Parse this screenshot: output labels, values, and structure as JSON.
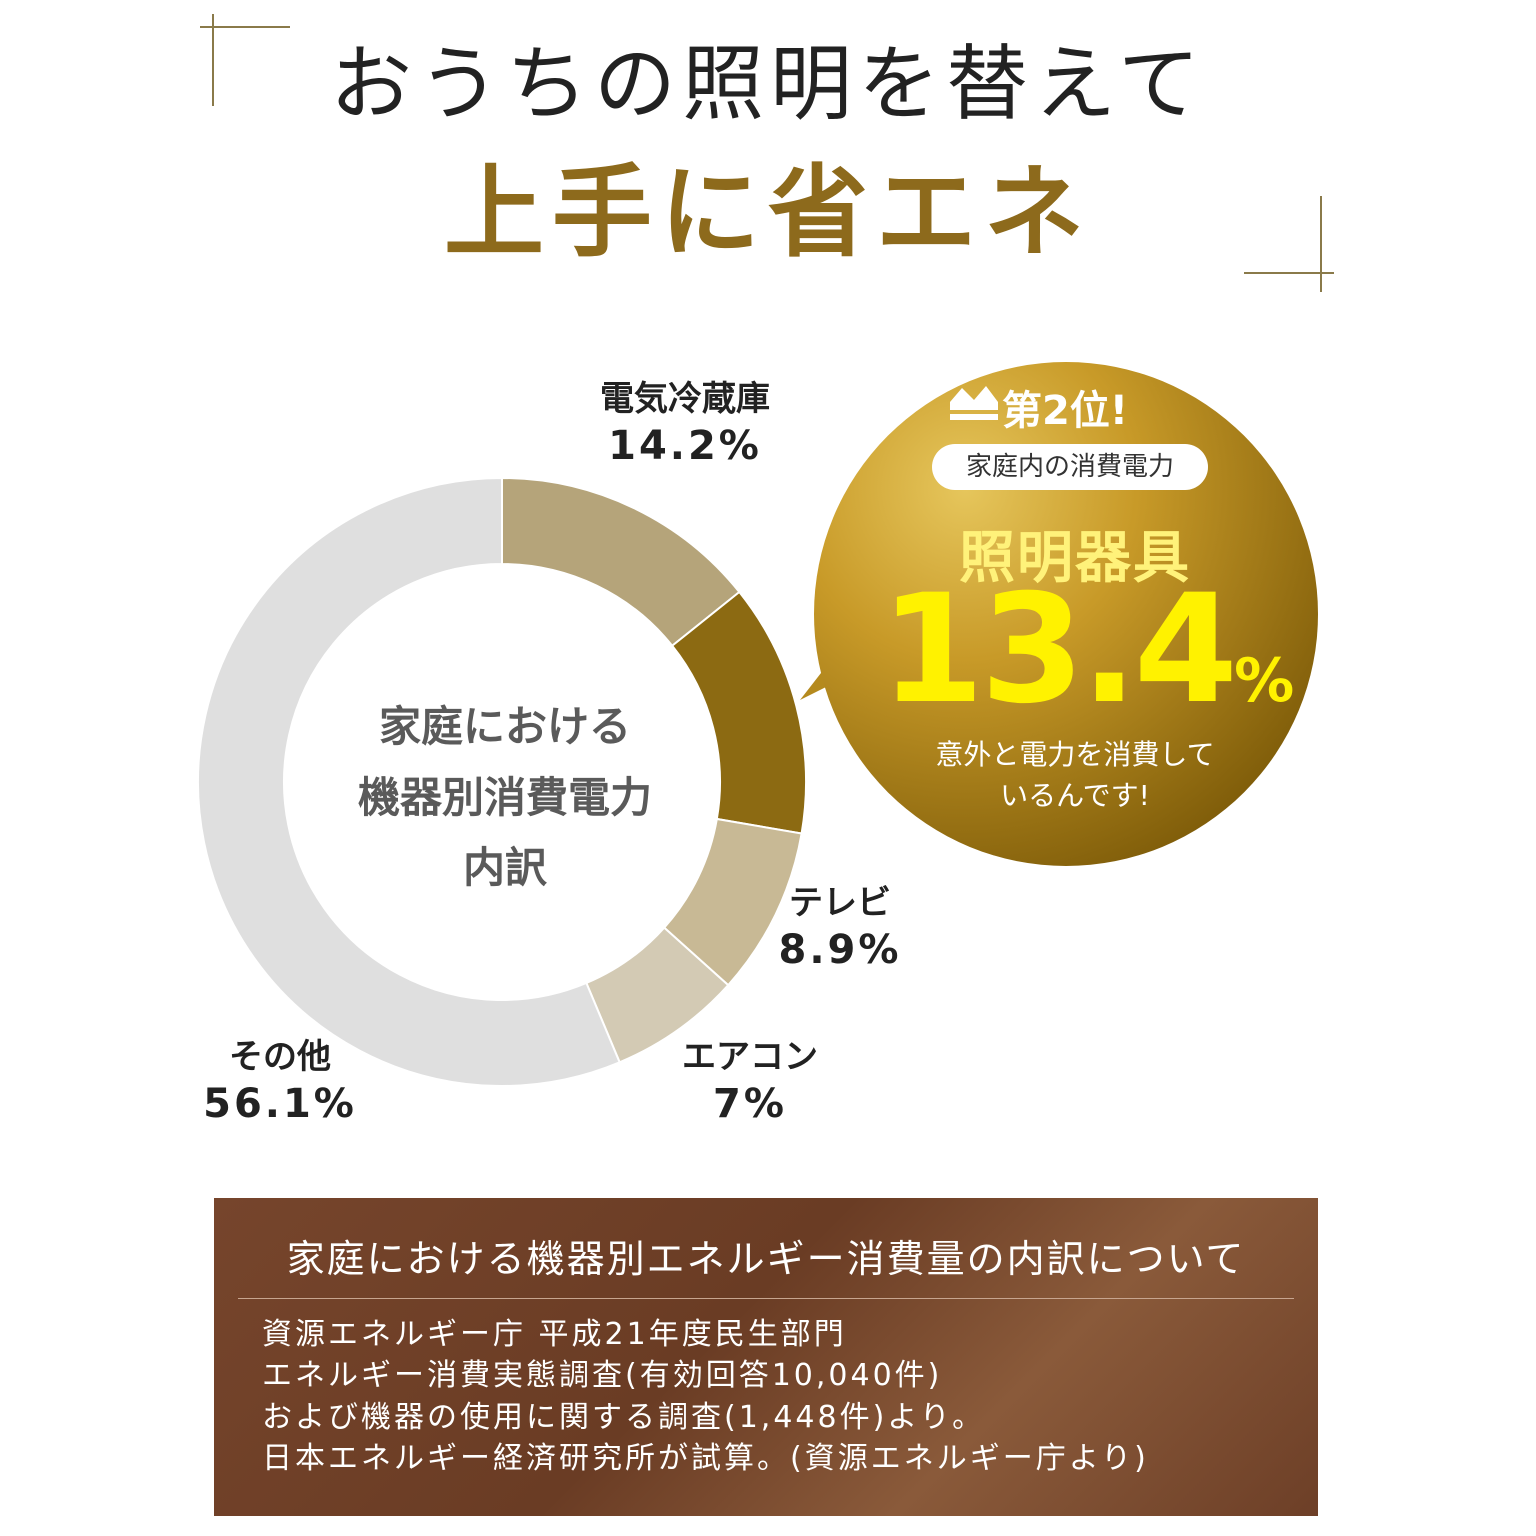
{
  "header": {
    "title_line1": "おうちの照明を替えて",
    "title_line2": "上手に省エネ"
  },
  "chart_data": {
    "type": "pie",
    "center_label": [
      "家庭における",
      "機器別消費電力",
      "内訳"
    ],
    "categories": [
      "電気冷蔵庫",
      "照明器具",
      "テレビ",
      "エアコン",
      "その他"
    ],
    "values": [
      14.2,
      13.4,
      8.9,
      7,
      56.1
    ],
    "value_labels": [
      "14.2%",
      "13.4%",
      "8.9%",
      "7%",
      "56.1%"
    ],
    "colors": [
      "#b5a47a",
      "#8c6a12",
      "#c8b995",
      "#d3cab4",
      "#dfdfdf"
    ]
  },
  "callout": {
    "rank_label": "第2位!",
    "pill_text": "家庭内の消費電力",
    "item": "照明器具",
    "percent_number": "13.4",
    "percent_unit": "%",
    "note_line1": "意外と電力を消費して",
    "note_line2": "いるんです!",
    "crown_icon": "crown-icon",
    "colors": {
      "gold_light": "#d8b14a",
      "gold_dark": "#7c5a08",
      "highlight": "#fff200"
    }
  },
  "source": {
    "title": "家庭における機器別エネルギー消費量の内訳について",
    "lines": [
      "資源エネルギー庁 平成21年度民生部門",
      "エネルギー消費実態調査(有効回答10,040件)",
      "および機器の使用に関する調査(1,448件)より。",
      "日本エネルギー経済研究所が試算。(資源エネルギー庁より)"
    ]
  }
}
